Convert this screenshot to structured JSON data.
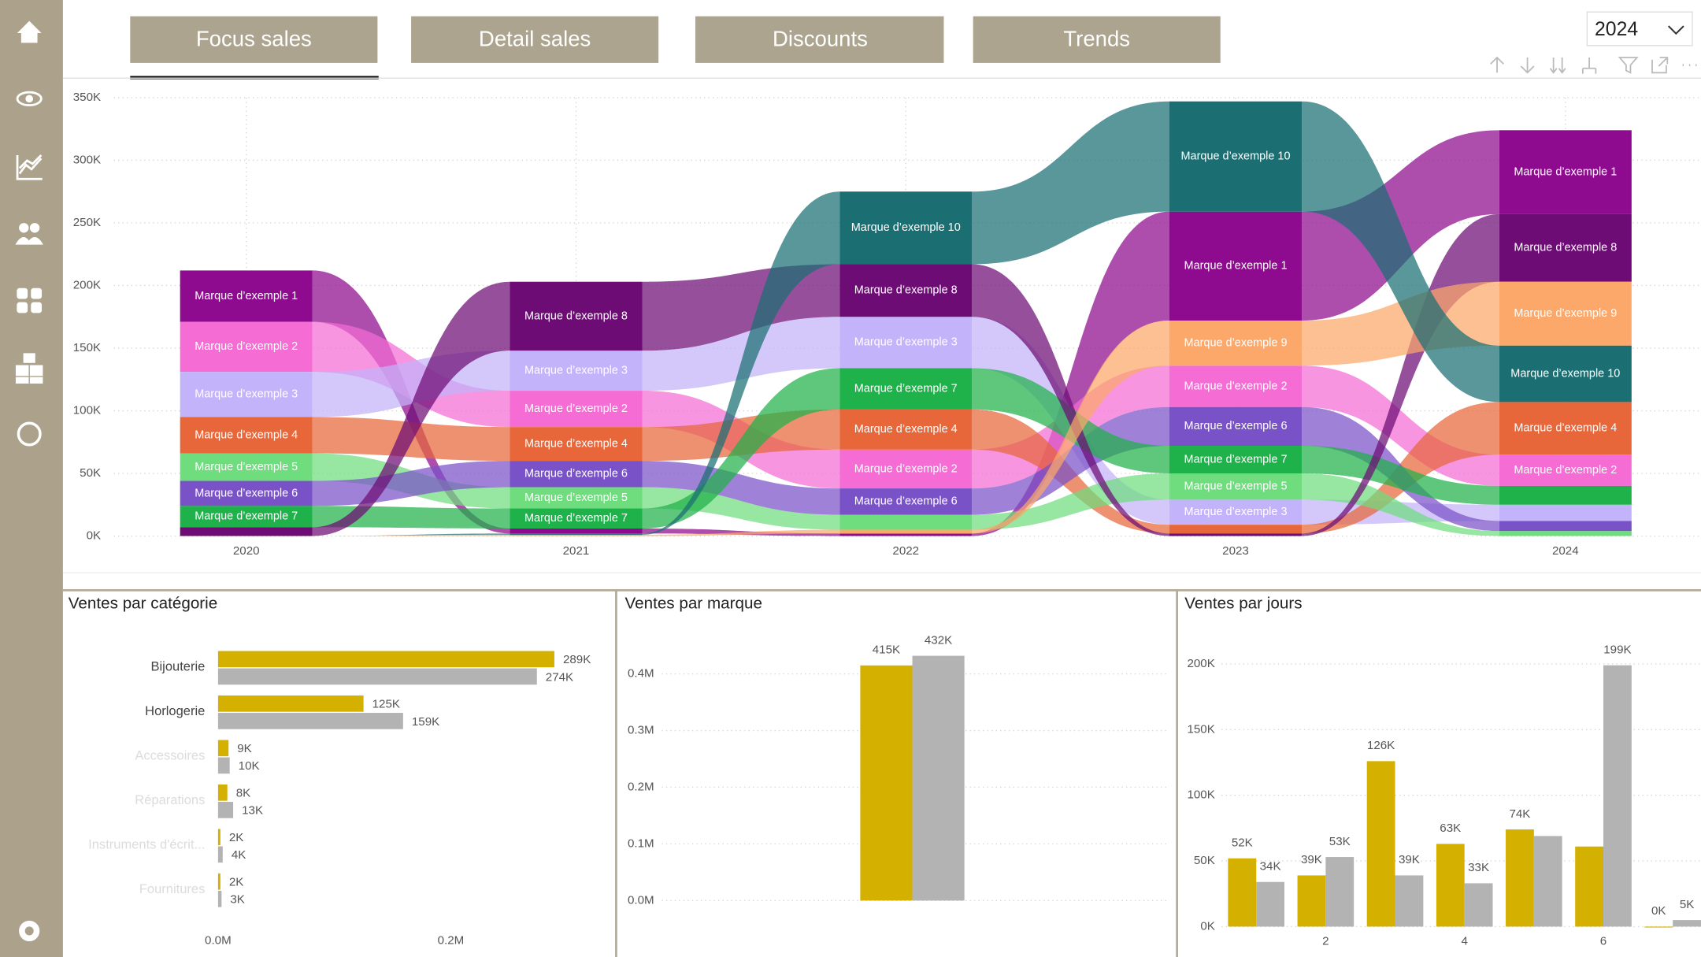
{
  "tabs": [
    "Focus sales",
    "Detail sales",
    "Discounts",
    "Trends"
  ],
  "year_filter": "2024",
  "chart_data": [
    {
      "type": "ribbon",
      "x": [
        "2020",
        "2021",
        "2022",
        "2023",
        "2024"
      ],
      "ylim": [
        0,
        350
      ],
      "yticks": [
        {
          "value": 0,
          "label": "0K"
        },
        {
          "value": 50,
          "label": "50K"
        },
        {
          "value": 100,
          "label": "100K"
        },
        {
          "value": 150,
          "label": "150K"
        },
        {
          "value": 200,
          "label": "200K"
        },
        {
          "value": 250,
          "label": "250K"
        },
        {
          "value": 300,
          "label": "300K"
        },
        {
          "value": 350,
          "label": "350K"
        }
      ],
      "grid": true,
      "series": [
        {
          "name": "Marque d’exemple 1",
          "color": "#8e0a8e",
          "values": [
            41,
            4,
            2,
            87,
            67
          ]
        },
        {
          "name": "Marque d’exemple 2",
          "color": "#f46cd4",
          "values": [
            40,
            29,
            31,
            33,
            25
          ]
        },
        {
          "name": "Marque d’exemple 3",
          "color": "#c3b3fa",
          "values": [
            36,
            32,
            41,
            20,
            13
          ]
        },
        {
          "name": "Marque d’exemple 4",
          "color": "#e8673a",
          "values": [
            29,
            27,
            32,
            7,
            42
          ]
        },
        {
          "name": "Marque d’exemple 5",
          "color": "#6fdc7e",
          "values": [
            22,
            17,
            12,
            21,
            4
          ]
        },
        {
          "name": "Marque d’exemple 6",
          "color": "#7a52c8",
          "values": [
            20,
            21,
            21,
            31,
            8
          ]
        },
        {
          "name": "Marque d’exemple 7",
          "color": "#20b24a",
          "values": [
            17,
            16,
            33,
            22,
            15
          ]
        },
        {
          "name": "Marque d’exemple 8",
          "color": "#6d0c75",
          "values": [
            7,
            55,
            42,
            2,
            54
          ]
        },
        {
          "name": "Marque d’exemple 9",
          "color": "#fba86a",
          "values": [
            0,
            1,
            3,
            36,
            51
          ]
        },
        {
          "name": "Marque d’exemple 10",
          "color": "#1b6f73",
          "values": [
            0,
            1,
            58,
            88,
            45
          ]
        }
      ]
    },
    {
      "type": "hbar",
      "title": "Ventes par catégorie",
      "categories": [
        "Bijouterie",
        "Horlogerie",
        "Accessoires",
        "Réparations",
        "Instruments d'écrit...",
        "Fournitures"
      ],
      "xlim": [
        0,
        0.33
      ],
      "xticks": [
        {
          "value": 0,
          "label": "0.0M"
        },
        {
          "value": 0.2,
          "label": "0.2M"
        }
      ],
      "series": [
        {
          "color": "#d4b000",
          "values": [
            0.289,
            0.125,
            0.009,
            0.008,
            0.002,
            0.002
          ],
          "value_labels": [
            "289K",
            "125K",
            "9K",
            "8K",
            "2K",
            "2K"
          ]
        },
        {
          "color": "#b3b3b3",
          "values": [
            0.274,
            0.159,
            0.01,
            0.013,
            0.004,
            0.003
          ],
          "value_labels": [
            "274K",
            "159K",
            "10K",
            "13K",
            "4K",
            "3K"
          ]
        }
      ]
    },
    {
      "type": "bar",
      "title": "Ventes par marque",
      "categories": [
        null
      ],
      "ylim": [
        0,
        0.45
      ],
      "yticks": [
        {
          "value": 0,
          "label": "0.0M"
        },
        {
          "value": 0.1,
          "label": "0.1M"
        },
        {
          "value": 0.2,
          "label": "0.2M"
        },
        {
          "value": 0.3,
          "label": "0.3M"
        },
        {
          "value": 0.4,
          "label": "0.4M"
        }
      ],
      "grid": true,
      "series": [
        {
          "color": "#d4b000",
          "values": [
            0.415
          ],
          "value_labels": [
            "415K"
          ]
        },
        {
          "color": "#b3b3b3",
          "values": [
            0.432
          ],
          "value_labels": [
            "432K"
          ]
        }
      ]
    },
    {
      "type": "bar",
      "title": "Ventes par jours",
      "categories": [
        null,
        "2",
        null,
        "4",
        null,
        "6",
        null
      ],
      "ylim": [
        0,
        214
      ],
      "yticks": [
        {
          "value": 0,
          "label": "0K"
        },
        {
          "value": 50,
          "label": "50K"
        },
        {
          "value": 100,
          "label": "100K"
        },
        {
          "value": 150,
          "label": "150K"
        },
        {
          "value": 200,
          "label": "200K"
        }
      ],
      "grid": true,
      "series": [
        {
          "color": "#d4b000",
          "values": [
            52,
            39,
            126,
            63,
            74,
            61,
            0
          ],
          "value_labels": [
            "52K",
            "39K",
            "126K",
            "63K",
            "74K",
            null,
            "0K"
          ]
        },
        {
          "color": "#b3b3b3",
          "values": [
            34,
            53,
            39,
            33,
            69,
            199,
            5
          ],
          "value_labels": [
            "34K",
            "53K",
            "39K",
            "33K",
            null,
            "199K",
            "5K"
          ]
        }
      ]
    }
  ]
}
